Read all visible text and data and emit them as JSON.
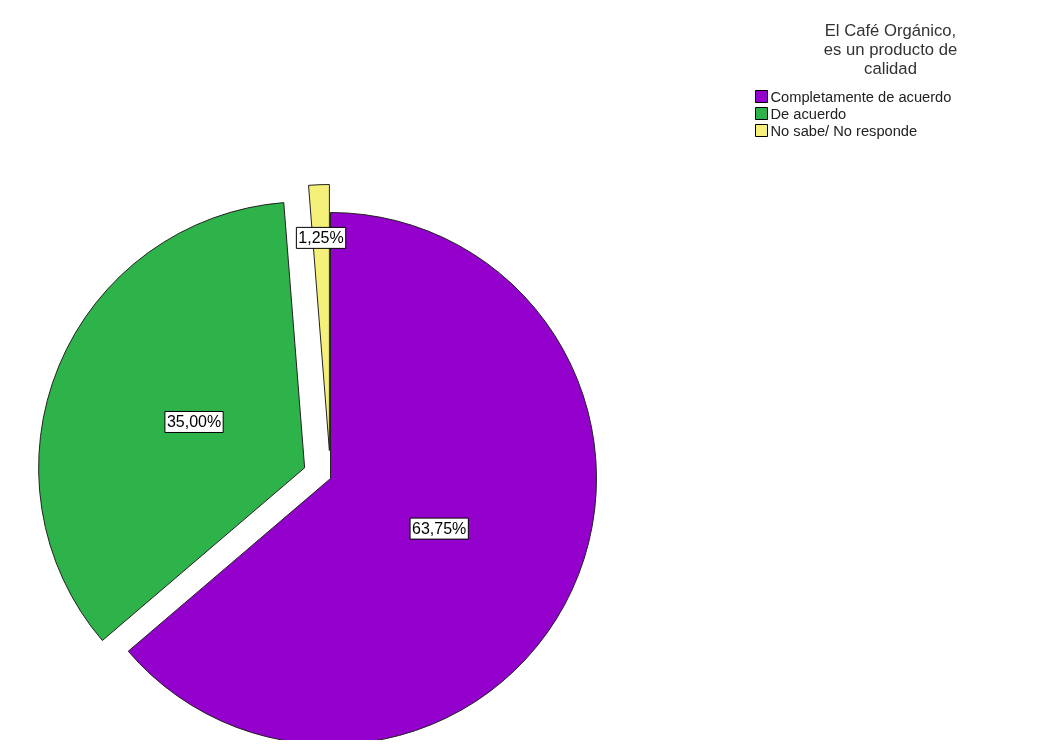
{
  "chart_data": {
    "type": "pie",
    "legend_title": "El Café Orgánico, es un producto de calidad",
    "categories": [
      "Completamente de acuerdo",
      "De acuerdo",
      "No sabe/ No responde"
    ],
    "values": [
      63.75,
      35.0,
      1.25
    ],
    "colors": [
      "#9400cc",
      "#2db34a",
      "#f5f07a"
    ],
    "value_labels": [
      "63,75%",
      "35,00%",
      "1,25%"
    ],
    "legend": "top right"
  }
}
